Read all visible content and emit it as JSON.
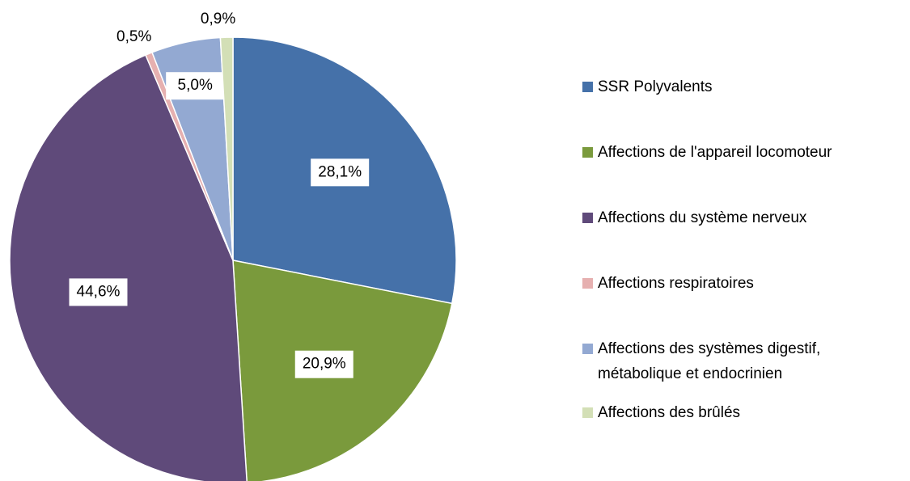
{
  "chart_data": {
    "type": "pie",
    "categories": [
      "SSR Polyvalents",
      "Affections de l'appareil locomoteur",
      "Affections du système nerveux",
      "Affections respiratoires",
      "Affections des systèmes digestif, métabolique et endocrinien",
      "Affections des brûlés"
    ],
    "values": [
      28.1,
      20.9,
      44.6,
      0.5,
      5.0,
      0.9
    ],
    "value_labels": [
      "28,1%",
      "20,9%",
      "44,6%",
      "0,5%",
      "5,0%",
      "0,9%"
    ],
    "colors": [
      "#4571a9",
      "#7a9a3c",
      "#5f4a7a",
      "#e6b0b0",
      "#93a9d2",
      "#d3dfb6"
    ],
    "legend": "right"
  }
}
